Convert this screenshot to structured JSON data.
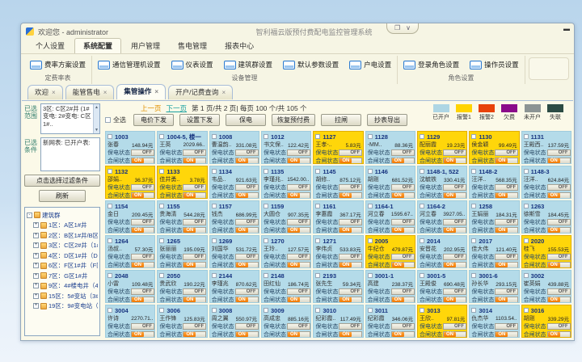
{
  "window": {
    "title": "欢迎您 - administrator",
    "center_title": "智利福云版预付费配电监控管理系统"
  },
  "icons": {
    "close": "×",
    "minimize": "▬",
    "restore": "❐",
    "chevron_down": "∨",
    "up": "▲",
    "down": "▼",
    "minus": "-",
    "plus": "+"
  },
  "ribbon_tabs": [
    {
      "label": "个人设置",
      "cls": ""
    },
    {
      "label": "系统配置",
      "cls": "active"
    },
    {
      "label": "用户管理",
      "cls": ""
    },
    {
      "label": "售电管理",
      "cls": ""
    },
    {
      "label": "报表中心",
      "cls": ""
    }
  ],
  "ribbon_groups": [
    {
      "label": "定费率表",
      "buttons": [
        "费率方案设置"
      ]
    },
    {
      "label": "设备管理",
      "buttons": [
        "通信管理机设置",
        "仪表设置",
        "建筑群设置",
        "默认参数设置",
        "户电设置"
      ]
    },
    {
      "label": "角色设置",
      "buttons": [
        "登录角色设置",
        "操作员设置"
      ]
    }
  ],
  "doc_tabs": [
    {
      "label": "欢迎",
      "cls": ""
    },
    {
      "label": "能管售电",
      "cls": ""
    },
    {
      "label": "集管操作",
      "cls": "active"
    },
    {
      "label": "开户/记费查询",
      "cls": ""
    }
  ],
  "sidebar": {
    "range_label": "已选范围",
    "range_text": "3区: C区2#井 (1#变电: 2#变电: C区1#..",
    "cond_label": "已选条件",
    "cond_text": "新网表: 已开户表:",
    "filter_btn": "点击选择过滤条件",
    "refresh_btn": "刷新",
    "tree_root": "建筑群",
    "tree_items": [
      "1区：A区1#井",
      "2区：B区1#井/B区1#井",
      "3区：C区2#井（1#变..",
      "4区：D区1#井（D区1..",
      "6区：F区1#井（F区1#..",
      "7区：G区1#井",
      "9区：4#楼电井（4#楼..",
      "15区：5#变站（3#变..",
      "19区：9#变电站（2#.."
    ]
  },
  "toolbar": {
    "select_all": "全选",
    "page_prev": "上一页",
    "page_next": "下一页",
    "page_info": "第 1 页/共 2 页| 每页 100 个/共 105 个",
    "buttons": [
      "电价下发",
      "设置下发",
      "保电",
      "恢复预付费",
      "拉闸",
      "抄表导出"
    ]
  },
  "legend": [
    {
      "label": "已开户",
      "color": "#aed6e4"
    },
    {
      "label": "报警1",
      "color": "#ffd400"
    },
    {
      "label": "报警2",
      "color": "#e8420a"
    },
    {
      "label": "欠费",
      "color": "#8a0a8a"
    },
    {
      "label": "未开户",
      "color": "#8c9494"
    },
    {
      "label": "失联",
      "color": "#2c4b44"
    }
  ],
  "card_labels": {
    "keep": "保电状态",
    "close": "合闸状态",
    "off": "OFF",
    "on": "ON"
  },
  "cards": [
    {
      "id": "1003",
      "name": "张春",
      "amount": "148.94元",
      "cls": "open"
    },
    {
      "id": "1004-5, 楼一",
      "name": "王英",
      "amount": "2029.66..",
      "cls": "open"
    },
    {
      "id": "1008",
      "name": "曹温韵..",
      "amount": "331.08元",
      "cls": "open"
    },
    {
      "id": "1012",
      "name": "书文保..",
      "amount": "122.42元",
      "cls": "open"
    },
    {
      "id": "1127",
      "name": "王孝-..",
      "amount": "5.83元",
      "cls": "alarm"
    },
    {
      "id": "1128",
      "name": "-MM..",
      "amount": "88.36元",
      "cls": "open"
    },
    {
      "id": "1129",
      "name": "配丽霞",
      "amount": "19.23元",
      "cls": "alarm"
    },
    {
      "id": "1130",
      "name": "侯金颖",
      "amount": "99.49元",
      "cls": "alarm"
    },
    {
      "id": "1131",
      "name": "王殿西..",
      "amount": "137.59元",
      "cls": "open"
    },
    {
      "id": "1132",
      "name": "邵娟..",
      "amount": "36.37元",
      "cls": "alarm"
    },
    {
      "id": "1133",
      "name": "佳井勇..",
      "amount": "3.78元",
      "cls": "alarm"
    },
    {
      "id": "1134",
      "name": "韦品..",
      "amount": "921.63元",
      "cls": "open"
    },
    {
      "id": "1135",
      "name": "李瑾兆..",
      "amount": "1542.00..",
      "cls": "open"
    },
    {
      "id": "1145",
      "name": "胡修..",
      "amount": "875.12元",
      "cls": "open"
    },
    {
      "id": "1146",
      "name": "胡刚",
      "amount": "681.52元",
      "cls": "open"
    },
    {
      "id": "1148-1, 522",
      "name": "沈毓铁",
      "amount": "330.41元",
      "cls": "open"
    },
    {
      "id": "1148-2",
      "name": "汪洋..",
      "amount": "568.35元",
      "cls": "open"
    },
    {
      "id": "1148-3",
      "name": "汪洋..",
      "amount": "624.84元",
      "cls": "open"
    },
    {
      "id": "1154",
      "name": "金日",
      "amount": "209.45元",
      "cls": "open"
    },
    {
      "id": "1155",
      "name": "贵海清",
      "amount": "544.28元",
      "cls": "open"
    },
    {
      "id": "1157",
      "name": "钱杰",
      "amount": "686.99元",
      "cls": "open"
    },
    {
      "id": "1159",
      "name": "大圆仓",
      "amount": "907.35元",
      "cls": "open"
    },
    {
      "id": "1161",
      "name": "李惠霞",
      "amount": "367.17元",
      "cls": "open"
    },
    {
      "id": "1164-1",
      "name": "河立春",
      "amount": "1595.67..",
      "cls": "open"
    },
    {
      "id": "1164-2",
      "name": "河立春",
      "amount": "3927.05..",
      "cls": "open"
    },
    {
      "id": "1258",
      "name": "王娟丽",
      "amount": "184.31元",
      "cls": "open"
    },
    {
      "id": "1263",
      "name": "徐斯雪",
      "amount": "184.45元",
      "cls": "open"
    },
    {
      "id": "1264",
      "name": "汤叔..",
      "amount": "57.30元",
      "cls": "open"
    },
    {
      "id": "1265",
      "name": "张丽丽",
      "amount": "195.09元",
      "cls": "open"
    },
    {
      "id": "1269",
      "name": "刘国华",
      "amount": "531.72元",
      "cls": "open"
    },
    {
      "id": "1270",
      "name": "王玲..",
      "amount": "127.57元",
      "cls": "open"
    },
    {
      "id": "1271",
      "name": "李伟贞",
      "amount": "533.83元",
      "cls": "open"
    },
    {
      "id": "2005",
      "name": "牛纪仓",
      "amount": "479.87元",
      "cls": "alarm"
    },
    {
      "id": "2014",
      "name": "安晋花",
      "amount": "202.95元",
      "cls": "open"
    },
    {
      "id": "2017",
      "name": "佳大伟",
      "amount": "121.40元",
      "cls": "open"
    },
    {
      "id": "2020",
      "name": "桂飞",
      "amount": "155.53元",
      "cls": "alarm"
    },
    {
      "id": "2048",
      "name": "小雷",
      "amount": "109.48元",
      "cls": "open"
    },
    {
      "id": "2050",
      "name": "贵武欣",
      "amount": "190.22元",
      "cls": "open"
    },
    {
      "id": "2144",
      "name": "李瑾兆",
      "amount": "870.62元",
      "cls": "open"
    },
    {
      "id": "2148",
      "name": "田红仙",
      "amount": "186.74元",
      "cls": "open"
    },
    {
      "id": "2193",
      "name": "张先生",
      "amount": "59.34元",
      "cls": "open"
    },
    {
      "id": "3001-1",
      "name": "高建",
      "amount": "238.37元",
      "cls": "open"
    },
    {
      "id": "3001-5",
      "name": "王殿俊",
      "amount": "690.48元",
      "cls": "open"
    },
    {
      "id": "3001-6",
      "name": "孙长华",
      "amount": "293.15元",
      "cls": "open"
    },
    {
      "id": "3002",
      "name": "崔英娟",
      "amount": "439.88元",
      "cls": "open"
    },
    {
      "id": "3004",
      "name": "许诗",
      "amount": "2270.71..",
      "cls": "open"
    },
    {
      "id": "3006",
      "name": "王作锋",
      "amount": "125.83元",
      "cls": "open"
    },
    {
      "id": "3008",
      "name": "周之翼",
      "amount": "550.97元",
      "cls": "open"
    },
    {
      "id": "3009",
      "name": "高成忠",
      "amount": "885.16元",
      "cls": "open"
    },
    {
      "id": "3010",
      "name": "纪彩霞..",
      "amount": "117.49元",
      "cls": "open"
    },
    {
      "id": "3011",
      "name": "纪彩霞",
      "amount": "346.06元",
      "cls": "open"
    },
    {
      "id": "3013",
      "name": "王欣..",
      "amount": "97.81元",
      "cls": "alarm"
    },
    {
      "id": "3014",
      "name": "仇杰华",
      "amount": "1103.54..",
      "cls": "open"
    },
    {
      "id": "3016",
      "name": "胡刚",
      "amount": "339.29元",
      "cls": "alarm"
    }
  ]
}
